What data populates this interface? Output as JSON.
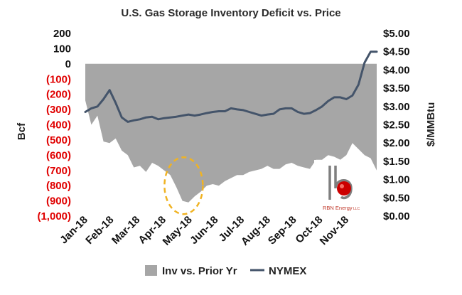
{
  "chart_data": {
    "type": "area",
    "title": "U.S. Gas Storage Inventory Deficit vs. Price",
    "ylabel_left": "Bcf",
    "ylabel_right": "$/MMBtu",
    "x_tick_labels": [
      "Jan-18",
      "Feb-18",
      "Mar-18",
      "Apr-18",
      "May-18",
      "Jun-18",
      "Jul-18",
      "Aug-18",
      "Sep-18",
      "Oct-18",
      "Nov-18"
    ],
    "y_left_ticks": [
      "200",
      "100",
      "0",
      "(100)",
      "(200)",
      "(300)",
      "(400)",
      "(500)",
      "(600)",
      "(700)",
      "(800)",
      "(900)",
      "(1,000)"
    ],
    "y_right_ticks": [
      "$5.00",
      "$4.50",
      "$4.00",
      "$3.50",
      "$3.00",
      "$2.50",
      "$2.00",
      "$1.50",
      "$1.00",
      "$0.50",
      "$0.00"
    ],
    "y_left_range": [
      -1000,
      200
    ],
    "y_right_range": [
      0,
      5
    ],
    "x_range": [
      0,
      48
    ],
    "grid": false,
    "legend_position": "bottom",
    "series": [
      {
        "name": "Inv vs. Prior Yr",
        "type": "area",
        "axis": "left",
        "color": "#a6a6a6",
        "x": [
          0,
          1,
          2,
          3,
          4,
          5,
          6,
          7,
          8,
          9,
          10,
          11,
          12,
          13,
          14,
          15,
          16,
          17,
          18,
          19,
          20,
          21,
          22,
          23,
          24,
          25,
          26,
          27,
          28,
          29,
          30,
          31,
          32,
          33,
          34,
          35,
          36,
          37,
          38,
          39,
          40,
          41,
          42,
          43,
          44,
          45,
          46,
          47,
          48
        ],
        "values": [
          -240,
          -400,
          -340,
          -510,
          -520,
          -490,
          -570,
          -600,
          -680,
          -670,
          -710,
          -650,
          -670,
          -700,
          -730,
          -810,
          -900,
          -910,
          -870,
          -840,
          -800,
          -790,
          -800,
          -770,
          -750,
          -730,
          -730,
          -710,
          -700,
          -690,
          -670,
          -690,
          -690,
          -660,
          -650,
          -670,
          -680,
          -690,
          -630,
          -630,
          -600,
          -610,
          -630,
          -600,
          -520,
          -560,
          -600,
          -620,
          -700
        ]
      },
      {
        "name": "NYMEX",
        "type": "line",
        "axis": "right",
        "color": "#44546a",
        "x": [
          0,
          1,
          2,
          3,
          4,
          5,
          6,
          7,
          8,
          9,
          10,
          11,
          12,
          13,
          14,
          15,
          16,
          17,
          18,
          19,
          20,
          21,
          22,
          23,
          24,
          25,
          26,
          27,
          28,
          29,
          30,
          31,
          32,
          33,
          34,
          35,
          36,
          37,
          38,
          39,
          40,
          41,
          42,
          43,
          44,
          45,
          46,
          47,
          48
        ],
        "values": [
          2.85,
          2.95,
          3.0,
          3.2,
          3.45,
          3.1,
          2.7,
          2.58,
          2.62,
          2.65,
          2.7,
          2.72,
          2.65,
          2.68,
          2.7,
          2.72,
          2.75,
          2.78,
          2.75,
          2.78,
          2.82,
          2.85,
          2.87,
          2.87,
          2.95,
          2.92,
          2.9,
          2.85,
          2.8,
          2.75,
          2.78,
          2.8,
          2.92,
          2.95,
          2.95,
          2.85,
          2.8,
          2.82,
          2.9,
          3.0,
          3.15,
          3.25,
          3.25,
          3.2,
          3.3,
          3.6,
          4.2,
          4.5,
          4.5
        ]
      }
    ],
    "annotations": [
      {
        "type": "ellipse",
        "near_x": 16.2,
        "near_y": -800,
        "color": "#f0b323",
        "style": "dashed"
      }
    ]
  },
  "logo": {
    "company": "RBN Energy",
    "suffix": "LLC"
  },
  "colors": {
    "left_axis_negative": "#e00000",
    "axis_text": "#111111",
    "annotation": "#f0b323",
    "logo_red": "#cc0000",
    "logo_gray": "#7f7f7f"
  }
}
